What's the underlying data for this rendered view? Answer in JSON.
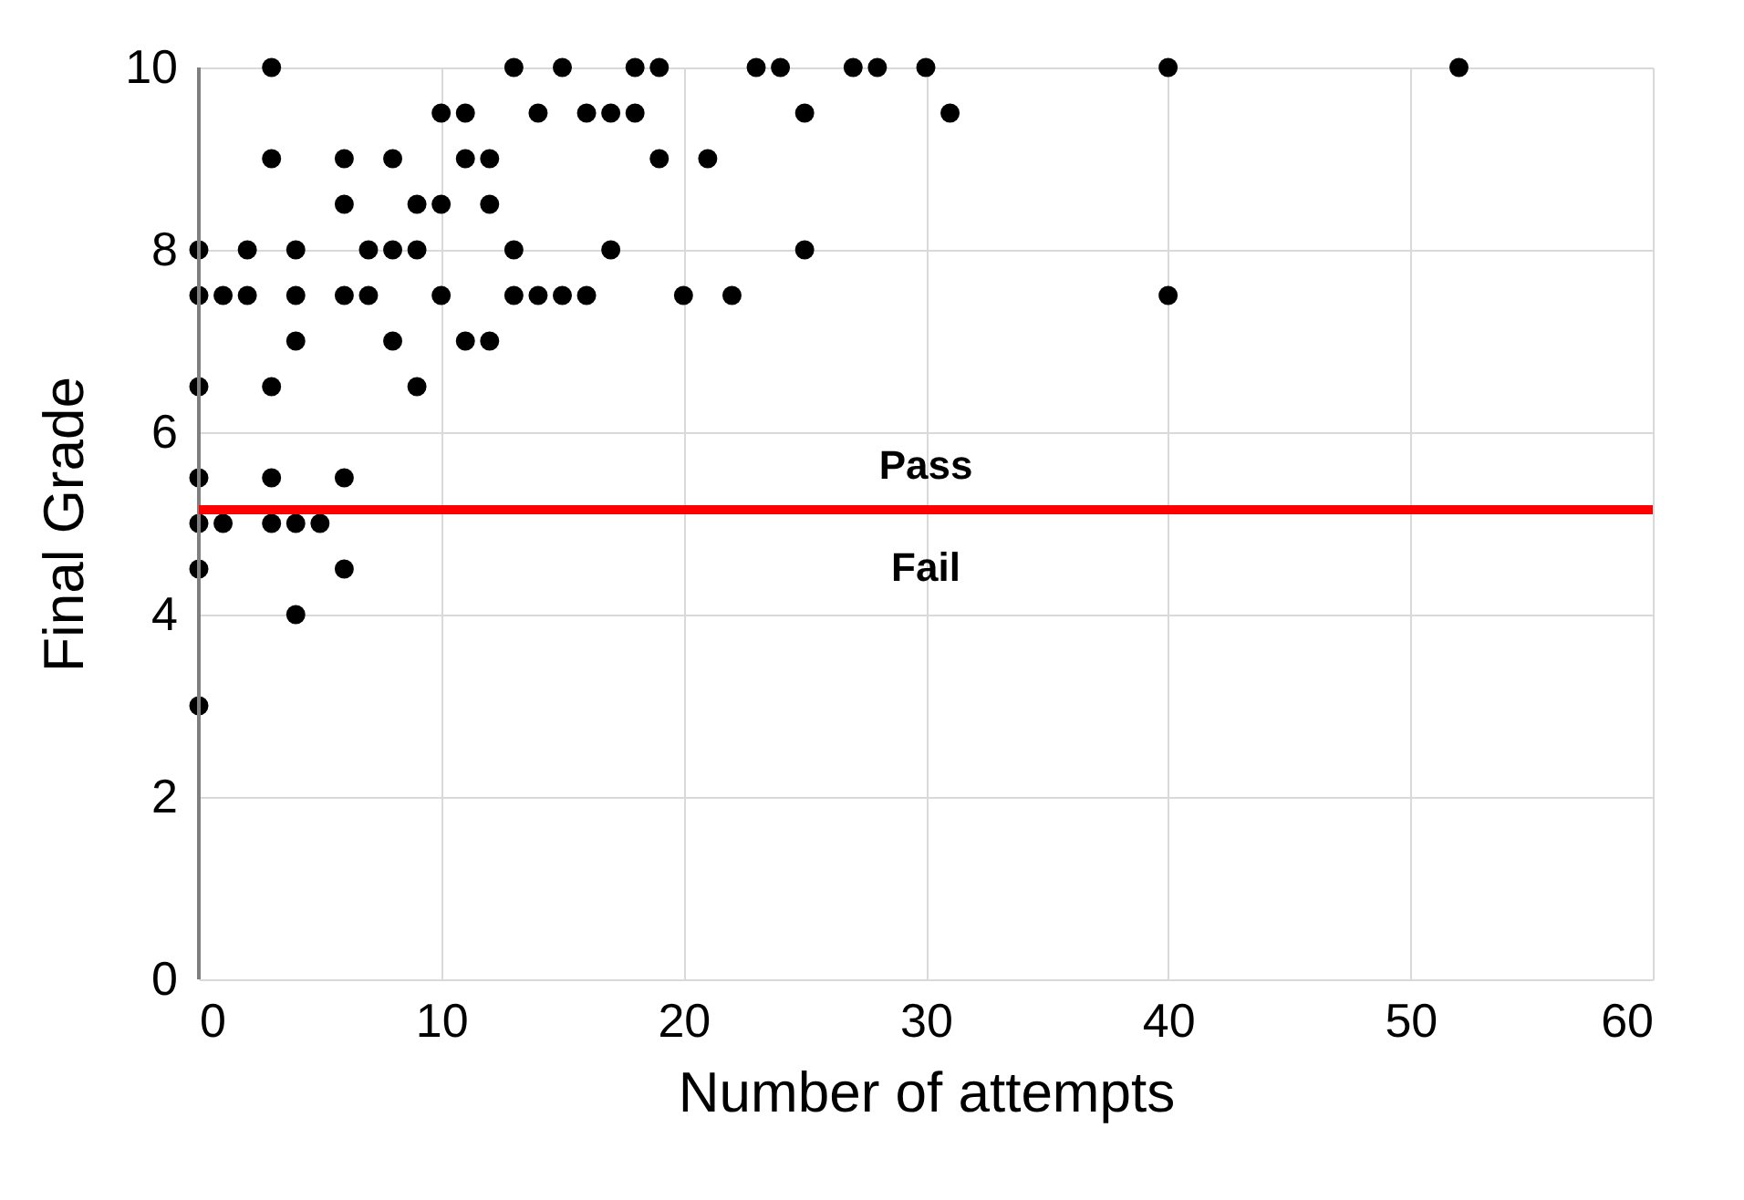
{
  "chart_data": {
    "type": "scatter",
    "xlabel": "Number of attempts",
    "ylabel": "Final Grade",
    "xlim": [
      0,
      60
    ],
    "xticks": [
      0,
      10,
      20,
      30,
      40,
      50,
      60
    ],
    "ylim": [
      0,
      10
    ],
    "yticks": [
      0,
      2,
      4,
      6,
      8,
      10
    ],
    "grid": true,
    "marker": "circle",
    "series": [
      {
        "color": "#000000",
        "x": [
          3,
          13,
          15,
          18,
          19,
          23,
          24,
          27,
          28,
          30,
          40,
          52,
          10,
          11,
          14,
          16,
          17,
          18,
          25,
          31,
          3,
          6,
          8,
          11,
          12,
          19,
          21,
          6,
          9,
          10,
          12,
          0,
          2,
          4,
          7,
          8,
          9,
          13,
          17,
          25,
          0,
          1,
          2,
          4,
          6,
          7,
          10,
          13,
          14,
          15,
          16,
          20,
          22,
          40,
          4,
          8,
          11,
          12,
          0,
          3,
          9,
          0,
          3,
          6,
          0,
          1,
          3,
          4,
          5,
          0,
          6,
          4,
          0
        ],
        "values": [
          10,
          10,
          10,
          10,
          10,
          10,
          10,
          10,
          10,
          10,
          10,
          10,
          9.5,
          9.5,
          9.5,
          9.5,
          9.5,
          9.5,
          9.5,
          9.5,
          9,
          9,
          9,
          9,
          9,
          9,
          9,
          8.5,
          8.5,
          8.5,
          8.5,
          8,
          8,
          8,
          8,
          8,
          8,
          8,
          8,
          8,
          7.5,
          7.5,
          7.5,
          7.5,
          7.5,
          7.5,
          7.5,
          7.5,
          7.5,
          7.5,
          7.5,
          7.5,
          7.5,
          7.5,
          7,
          7,
          7,
          7,
          6.5,
          6.5,
          6.5,
          5.5,
          5.5,
          5.5,
          5,
          5,
          5,
          5,
          5,
          4.5,
          4.5,
          4,
          3
        ]
      }
    ],
    "ref_lines": [
      {
        "axis": "y",
        "value": 5.15,
        "color": "#ff0000"
      }
    ],
    "annotations": [
      "Pass",
      "Fail"
    ]
  }
}
